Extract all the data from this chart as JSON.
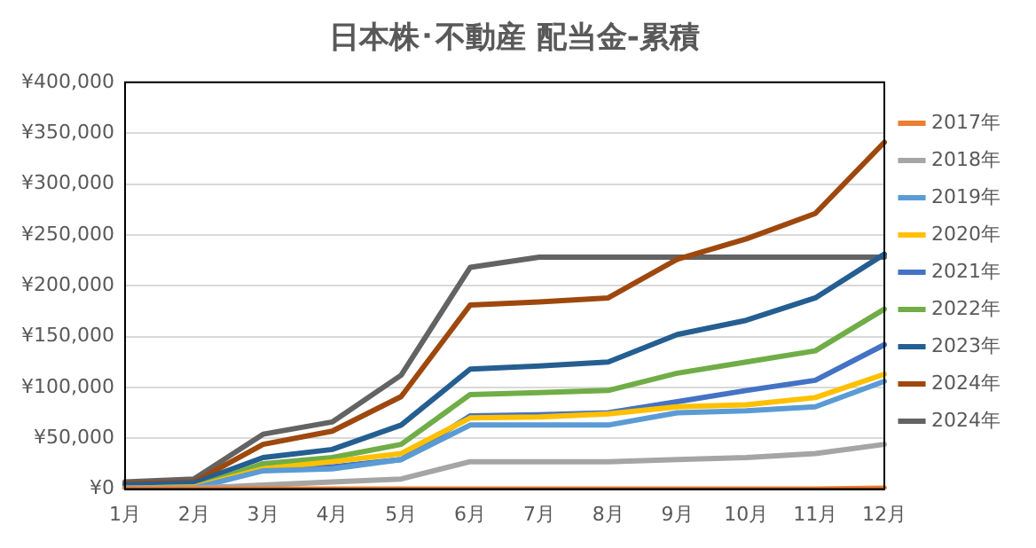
{
  "chart_data": {
    "type": "line",
    "title": "日本株･不動産 配当金-累積",
    "categories": [
      "1月",
      "2月",
      "3月",
      "4月",
      "5月",
      "6月",
      "7月",
      "8月",
      "9月",
      "10月",
      "11月",
      "12月"
    ],
    "ylim": [
      0,
      400000
    ],
    "yticks": [
      {
        "value": 0,
        "label": "¥0"
      },
      {
        "value": 50000,
        "label": "¥50,000"
      },
      {
        "value": 100000,
        "label": "¥100,000"
      },
      {
        "value": 150000,
        "label": "¥150,000"
      },
      {
        "value": 200000,
        "label": "¥200,000"
      },
      {
        "value": 250000,
        "label": "¥250,000"
      },
      {
        "value": 300000,
        "label": "¥300,000"
      },
      {
        "value": 350000,
        "label": "¥350,000"
      },
      {
        "value": 400000,
        "label": "¥400,000"
      }
    ],
    "grid": "y",
    "legend": "right",
    "marker": "none",
    "line_style": "solid",
    "series": [
      {
        "name": "2017年",
        "color": "#ed7d31",
        "values": [
          0,
          0,
          0,
          0,
          0,
          0,
          0,
          0,
          0,
          0,
          0,
          1000
        ]
      },
      {
        "name": "2018年",
        "color": "#a5a5a5",
        "values": [
          0,
          1000,
          4000,
          7000,
          10000,
          27000,
          27000,
          27000,
          29000,
          31000,
          35000,
          44000
        ]
      },
      {
        "name": "2019年",
        "color": "#5b9bd5",
        "values": [
          1000,
          1000,
          18000,
          20000,
          29000,
          63000,
          63000,
          63000,
          75000,
          77000,
          81000,
          106000
        ]
      },
      {
        "name": "2020年",
        "color": "#ffc000",
        "values": [
          1000,
          2000,
          20000,
          27000,
          35000,
          70000,
          71000,
          74000,
          81000,
          83000,
          90000,
          113000
        ]
      },
      {
        "name": "2021年",
        "color": "#4472c4",
        "values": [
          1000,
          2000,
          19000,
          22000,
          29000,
          72000,
          73000,
          75000,
          86000,
          97000,
          107000,
          142000
        ]
      },
      {
        "name": "2022年",
        "color": "#70ad47",
        "values": [
          1000,
          2000,
          25000,
          31000,
          44000,
          93000,
          95000,
          97000,
          114000,
          125000,
          136000,
          177000
        ]
      },
      {
        "name": "2023年",
        "color": "#255e91",
        "values": [
          4000,
          6000,
          31000,
          39000,
          63000,
          118000,
          121000,
          125000,
          152000,
          166000,
          188000,
          231000
        ]
      },
      {
        "name": "2024年",
        "color": "#9e480e",
        "values": [
          5000,
          7000,
          44000,
          57000,
          91000,
          181000,
          184000,
          188000,
          226000,
          246000,
          271000,
          341000
        ]
      },
      {
        "name": "2024年",
        "color": "#636363",
        "values": [
          7000,
          10000,
          54000,
          66000,
          112000,
          218000,
          228000,
          228000,
          228000,
          228000,
          228000,
          228000
        ]
      }
    ]
  }
}
